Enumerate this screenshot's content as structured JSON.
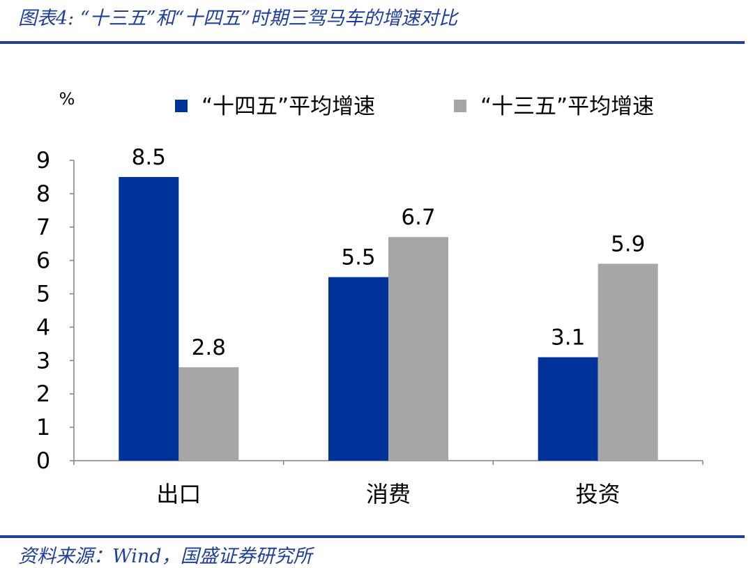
{
  "header": {
    "title": "图表4:  “十三五”和“十四五”时期三驾马车的增速对比"
  },
  "footer": {
    "source": "资料来源：Wind，国盛证券研究所"
  },
  "chart_data": {
    "type": "bar",
    "unit_label": "%",
    "categories": [
      "出口",
      "消费",
      "投资"
    ],
    "series": [
      {
        "name": "“十四五”平均增速",
        "color": "#003399",
        "values": [
          8.5,
          5.5,
          3.1
        ]
      },
      {
        "name": "“十三五”平均增速",
        "color": "#a6a6a6",
        "values": [
          2.8,
          6.7,
          5.9
        ]
      }
    ],
    "ylim": [
      0,
      9
    ],
    "yticks": [
      "0",
      "1",
      "2",
      "3",
      "4",
      "5",
      "6",
      "7",
      "8",
      "9"
    ],
    "legend_position": "top",
    "grid": false,
    "data_labels": true
  }
}
